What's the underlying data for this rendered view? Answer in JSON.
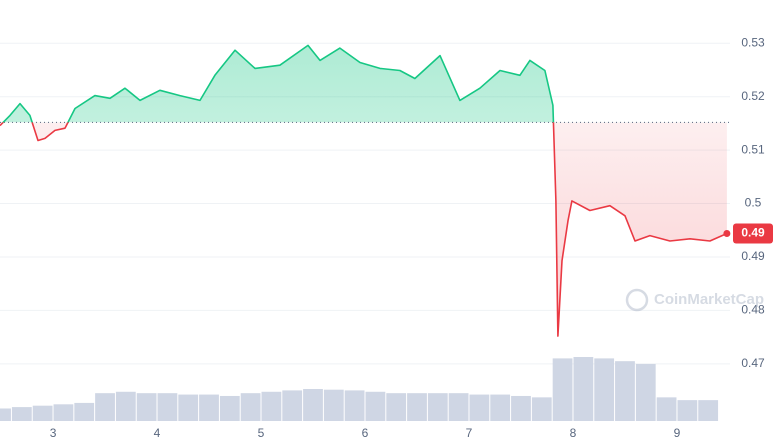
{
  "chart_data": {
    "type": "line",
    "x": [
      2.49,
      2.586,
      2.682,
      2.778,
      2.855,
      2.923,
      3.019,
      3.115,
      3.211,
      3.403,
      3.548,
      3.692,
      3.836,
      4.028,
      4.221,
      4.413,
      4.557,
      4.75,
      4.942,
      5.182,
      5.452,
      5.567,
      5.759,
      5.952,
      6.144,
      6.336,
      6.48,
      6.721,
      6.913,
      7.105,
      7.298,
      7.49,
      7.586,
      7.73,
      7.807,
      7.836,
      7.855,
      7.894,
      7.952,
      7.99,
      8.163,
      8.355,
      8.5,
      8.596,
      8.74,
      8.932,
      9.125,
      9.317,
      9.48
    ],
    "series": [
      {
        "color": "#16c784",
        "values": [
          0.5146,
          0.5165,
          0.5187,
          0.5165,
          0.5118,
          0.5122,
          0.5137,
          0.5141,
          0.5178,
          0.5202,
          0.5197,
          0.5216,
          0.5193,
          0.5212,
          0.5202,
          0.5193,
          0.524,
          0.5287,
          0.5253,
          0.5259,
          0.5296,
          0.5268,
          0.5291,
          0.5264,
          0.5253,
          0.5249,
          0.5234,
          0.5277,
          0.5193,
          0.5216,
          0.5249,
          0.524,
          0.5268,
          0.5249,
          0.5184,
          0.5005,
          0.4752,
          0.4893,
          0.4968,
          0.5005,
          0.4987,
          0.4996,
          0.4977,
          0.493,
          0.494,
          0.493,
          0.4934,
          0.493,
          0.4944
        ]
      }
    ],
    "below_color": "#ea3943",
    "baseline": 0.5152,
    "volume": {
      "x": [
        2.5,
        2.7,
        2.9,
        3.1,
        3.3,
        3.5,
        3.7,
        3.9,
        4.1,
        4.3,
        4.5,
        4.7,
        4.9,
        5.1,
        5.3,
        5.5,
        5.7,
        5.9,
        6.1,
        6.3,
        6.5,
        6.7,
        6.9,
        7.1,
        7.3,
        7.5,
        7.7,
        7.9,
        8.1,
        8.3,
        8.5,
        8.7,
        8.9,
        9.1,
        9.3
      ],
      "values": [
        18,
        20,
        22,
        24,
        26,
        40,
        42,
        40,
        40,
        38,
        38,
        36,
        40,
        42,
        44,
        46,
        45,
        44,
        42,
        40,
        40,
        40,
        40,
        38,
        38,
        36,
        34,
        90,
        92,
        90,
        86,
        82,
        34,
        30,
        30
      ],
      "color": "#cfd6e4"
    },
    "current_price": {
      "value": 0.4944,
      "label": "0.49"
    },
    "watermark": "CoinMarketCap",
    "xlim": [
      2.49,
      9.51
    ],
    "xticks": [
      3,
      4,
      5,
      6,
      7,
      8,
      9
    ],
    "ylim": [
      0.4593,
      0.5381
    ],
    "yticks": [
      0.47,
      0.48,
      0.49,
      0.5,
      0.51,
      0.52,
      0.53
    ],
    "grid": true
  }
}
